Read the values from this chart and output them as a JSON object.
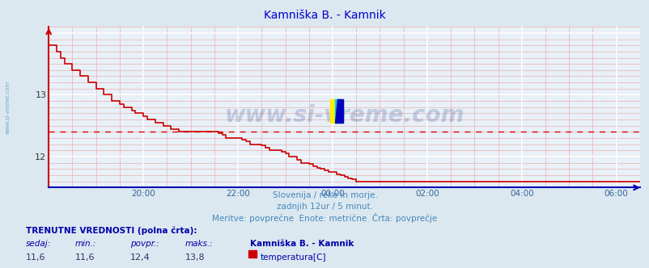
{
  "title": "Kamniška B. - Kamnik",
  "title_color": "#0000cc",
  "title_fontsize": 10,
  "bg_color": "#dce8f0",
  "plot_bg_color": "#e8f0f8",
  "line_color": "#cc0000",
  "avg_value": 12.4,
  "y_min": 11.5,
  "y_max": 14.1,
  "x_tick_pos": [
    2,
    4,
    6,
    8,
    10,
    12
  ],
  "x_tick_labels": [
    "20:00",
    "22:00",
    "00:00",
    "02:00",
    "04:00",
    "06:00"
  ],
  "y_ticks": [
    12,
    13
  ],
  "watermark_text": "www.si-vreme.com",
  "watermark_color": "#1a3a8a",
  "watermark_alpha": 0.2,
  "sub_text1": "Slovenija / reke in morje.",
  "sub_text2": "zadnjih 12ur / 5 minut.",
  "sub_text3": "Meritve: povprečne  Enote: metrične  Črta: povprečje",
  "sub_text_color": "#4488bb",
  "footer_label1": "TRENUTNE VREDNOSTI (polna črta):",
  "footer_col_headers": [
    "sedaj:",
    "min.:",
    "povpr.:",
    "maks.:",
    "Kamniška B. - Kamnik"
  ],
  "footer_col_values": [
    "11,6",
    "11,6",
    "12,4",
    "13,8"
  ],
  "footer_legend_label": "temperatura[C]",
  "footer_text_color": "#0000aa",
  "footer_value_color": "#333366",
  "left_label": "www.si-vreme.com",
  "left_label_color": "#5599bb",
  "data_x": [
    0.0,
    0.083,
    0.167,
    0.25,
    0.333,
    0.417,
    0.5,
    0.583,
    0.667,
    0.75,
    0.833,
    0.917,
    1.0,
    1.083,
    1.167,
    1.25,
    1.333,
    1.417,
    1.5,
    1.583,
    1.667,
    1.75,
    1.833,
    1.917,
    2.0,
    2.083,
    2.167,
    2.25,
    2.333,
    2.417,
    2.5,
    2.583,
    2.667,
    2.75,
    2.833,
    2.917,
    3.0,
    3.083,
    3.167,
    3.25,
    3.333,
    3.417,
    3.5,
    3.583,
    3.667,
    3.75,
    3.833,
    3.917,
    4.0,
    4.083,
    4.167,
    4.25,
    4.333,
    4.417,
    4.5,
    4.583,
    4.667,
    4.75,
    4.833,
    4.917,
    5.0,
    5.083,
    5.167,
    5.25,
    5.333,
    5.417,
    5.5,
    5.583,
    5.667,
    5.75,
    5.833,
    5.917,
    6.0,
    6.083,
    6.167,
    6.25,
    6.333,
    6.417,
    6.5,
    6.583,
    6.667,
    6.75,
    6.833,
    6.917,
    7.0,
    7.083,
    7.167,
    7.25,
    7.333,
    7.417,
    7.5,
    7.583,
    7.667,
    7.75,
    7.833,
    7.917,
    8.0,
    8.083,
    8.167,
    8.25,
    8.333,
    8.417,
    8.5,
    8.583,
    8.667,
    8.75,
    8.833,
    8.917,
    9.0,
    9.083,
    9.167,
    9.25,
    9.333,
    9.417,
    9.5,
    9.583,
    9.667,
    9.75,
    9.833,
    9.917,
    10.0,
    10.083,
    10.167,
    10.25,
    10.333,
    10.417,
    10.5,
    10.583,
    10.667,
    10.75,
    10.833,
    10.917,
    11.0,
    11.083,
    11.167,
    11.25,
    11.333,
    11.417,
    11.5,
    11.583,
    11.667,
    11.75,
    11.833,
    11.917,
    12.0,
    12.083,
    12.167,
    12.25,
    12.333,
    12.417,
    12.5
  ],
  "data_y": [
    13.8,
    13.8,
    13.7,
    13.6,
    13.5,
    13.5,
    13.4,
    13.4,
    13.3,
    13.3,
    13.2,
    13.2,
    13.1,
    13.1,
    13.0,
    13.0,
    12.9,
    12.9,
    12.85,
    12.8,
    12.8,
    12.75,
    12.7,
    12.7,
    12.65,
    12.6,
    12.6,
    12.55,
    12.55,
    12.5,
    12.5,
    12.45,
    12.45,
    12.4,
    12.4,
    12.4,
    12.4,
    12.4,
    12.4,
    12.4,
    12.4,
    12.4,
    12.4,
    12.38,
    12.35,
    12.3,
    12.3,
    12.3,
    12.3,
    12.28,
    12.25,
    12.2,
    12.2,
    12.2,
    12.18,
    12.15,
    12.1,
    12.1,
    12.1,
    12.08,
    12.05,
    12.0,
    12.0,
    11.95,
    11.9,
    11.9,
    11.88,
    11.85,
    11.82,
    11.8,
    11.78,
    11.75,
    11.75,
    11.72,
    11.7,
    11.68,
    11.65,
    11.63,
    11.6,
    11.6,
    11.6,
    11.6,
    11.6,
    11.6,
    11.6,
    11.6,
    11.6,
    11.6,
    11.6,
    11.6,
    11.6,
    11.6,
    11.6,
    11.6,
    11.6,
    11.6,
    11.6,
    11.6,
    11.6,
    11.6,
    11.6,
    11.6,
    11.6,
    11.6,
    11.6,
    11.6,
    11.6,
    11.6,
    11.6,
    11.6,
    11.6,
    11.6,
    11.6,
    11.6,
    11.6,
    11.6,
    11.6,
    11.6,
    11.6,
    11.6,
    11.6,
    11.6,
    11.6,
    11.6,
    11.6,
    11.6,
    11.6,
    11.6,
    11.6,
    11.6,
    11.6,
    11.6,
    11.6,
    11.6,
    11.6,
    11.6,
    11.6,
    11.6,
    11.6,
    11.6,
    11.6,
    11.6,
    11.6,
    11.6,
    11.6,
    11.6,
    11.6,
    11.6,
    11.6,
    11.6,
    11.6
  ]
}
